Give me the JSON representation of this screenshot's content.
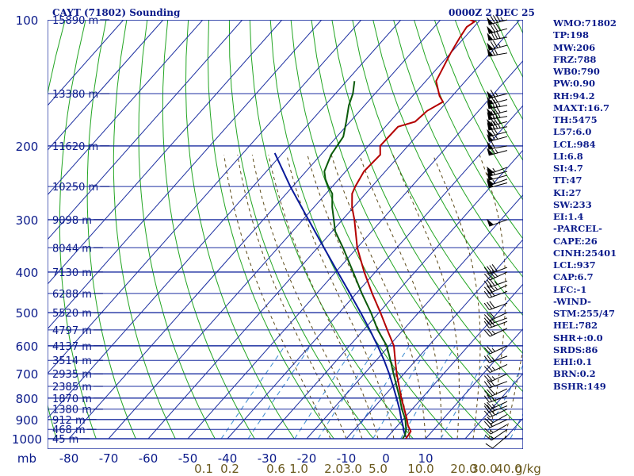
{
  "header": {
    "title": "CAYT (71802) Sounding",
    "valid_time": "0000Z  2 DEC 25"
  },
  "chart_data": {
    "type": "skew-t",
    "pressure_levels": [
      100,
      200,
      300,
      400,
      500,
      600,
      700,
      800,
      900,
      1000
    ],
    "pressure_label": "mb",
    "height_labels": [
      {
        "p": 100,
        "text": "15890 m"
      },
      {
        "p": 150,
        "text": "13380 m"
      },
      {
        "p": 200,
        "text": "11620 m"
      },
      {
        "p": 250,
        "text": "10250 m"
      },
      {
        "p": 300,
        "text": "9098 m"
      },
      {
        "p": 350,
        "text": "8044 m"
      },
      {
        "p": 400,
        "text": "7130 m"
      },
      {
        "p": 450,
        "text": "6288 m"
      },
      {
        "p": 500,
        "text": "5520 m"
      },
      {
        "p": 550,
        "text": "4797 m"
      },
      {
        "p": 600,
        "text": "4137 m"
      },
      {
        "p": 650,
        "text": "3514 m"
      },
      {
        "p": 700,
        "text": "2935 m"
      },
      {
        "p": 750,
        "text": "2385 m"
      },
      {
        "p": 800,
        "text": "1870 m"
      },
      {
        "p": 850,
        "text": "1380 m"
      },
      {
        "p": 900,
        "text": "912 m"
      },
      {
        "p": 950,
        "text": "468 m"
      },
      {
        "p": 1000,
        "text": "45 m"
      }
    ],
    "temperature_ticks": [
      -80,
      -70,
      -60,
      -50,
      -40,
      -30,
      -20,
      -10,
      0,
      10
    ],
    "mixing_ratio_ticks": [
      "0.1",
      "0.2",
      "0.6",
      "1.0",
      "2.0",
      "3.0",
      "5.0",
      "10.0",
      "20.0",
      "30.0",
      "40.0"
    ],
    "mixing_ratio_unit": "g/kg",
    "temperature_profile": [
      [
        1000,
        5.0
      ],
      [
        975,
        4.8
      ],
      [
        960,
        4.6
      ],
      [
        930,
        2.6
      ],
      [
        900,
        1.0
      ],
      [
        850,
        -2.0
      ],
      [
        800,
        -5.2
      ],
      [
        750,
        -8.4
      ],
      [
        700,
        -11.8
      ],
      [
        650,
        -15.2
      ],
      [
        600,
        -18.8
      ],
      [
        550,
        -24.0
      ],
      [
        500,
        -29.6
      ],
      [
        450,
        -36.0
      ],
      [
        400,
        -42.8
      ],
      [
        350,
        -50.0
      ],
      [
        300,
        -57.0
      ],
      [
        280,
        -60.4
      ],
      [
        260,
        -63.4
      ],
      [
        250,
        -64.2
      ],
      [
        230,
        -65.4
      ],
      [
        210,
        -65.0
      ],
      [
        200,
        -67.0
      ],
      [
        180,
        -66.8
      ],
      [
        175,
        -63.6
      ],
      [
        165,
        -63.0
      ],
      [
        157,
        -61.0
      ],
      [
        152,
        -63.2
      ],
      [
        140,
        -67.4
      ],
      [
        120,
        -70.0
      ],
      [
        110,
        -71.2
      ],
      [
        104,
        -71.8
      ],
      [
        101,
        -71.0
      ],
      [
        100,
        -72.6
      ]
    ],
    "dewpoint_profile": [
      [
        1000,
        4.2
      ],
      [
        980,
        4.0
      ],
      [
        950,
        3.0
      ],
      [
        900,
        0.6
      ],
      [
        850,
        -2.6
      ],
      [
        800,
        -5.6
      ],
      [
        750,
        -9.0
      ],
      [
        700,
        -12.6
      ],
      [
        650,
        -16.4
      ],
      [
        600,
        -20.6
      ],
      [
        550,
        -26.4
      ],
      [
        500,
        -32.0
      ],
      [
        450,
        -38.6
      ],
      [
        400,
        -45.6
      ],
      [
        350,
        -53.6
      ],
      [
        320,
        -59.2
      ],
      [
        300,
        -62.2
      ],
      [
        280,
        -65.4
      ],
      [
        260,
        -68.4
      ],
      [
        250,
        -71.0
      ],
      [
        240,
        -73.4
      ],
      [
        230,
        -75.4
      ],
      [
        210,
        -77.4
      ],
      [
        190,
        -78.4
      ],
      [
        175,
        -81.0
      ],
      [
        160,
        -84.0
      ],
      [
        150,
        -85.6
      ],
      [
        140,
        -88.0
      ]
    ],
    "parcel_profile": [
      [
        990,
        4.6
      ],
      [
        950,
        2.3
      ],
      [
        937,
        1.7
      ],
      [
        900,
        -0.4
      ],
      [
        850,
        -3.2
      ],
      [
        800,
        -6.4
      ],
      [
        750,
        -9.9
      ],
      [
        700,
        -13.7
      ],
      [
        650,
        -18.0
      ],
      [
        600,
        -22.9
      ],
      [
        550,
        -28.4
      ],
      [
        500,
        -34.6
      ],
      [
        450,
        -41.6
      ],
      [
        400,
        -49.5
      ],
      [
        350,
        -58.4
      ],
      [
        300,
        -68.6
      ],
      [
        250,
        -80.6
      ],
      [
        208,
        -92.0
      ]
    ],
    "wind_barbs": [
      {
        "p": 100,
        "dir": 255,
        "speed": 85
      },
      {
        "p": 105,
        "dir": 255,
        "speed": 80
      },
      {
        "p": 110,
        "dir": 260,
        "speed": 80
      },
      {
        "p": 115,
        "dir": 255,
        "speed": 75
      },
      {
        "p": 120,
        "dir": 260,
        "speed": 70
      },
      {
        "p": 150,
        "dir": 255,
        "speed": 65
      },
      {
        "p": 155,
        "dir": 255,
        "speed": 70
      },
      {
        "p": 160,
        "dir": 260,
        "speed": 75
      },
      {
        "p": 165,
        "dir": 255,
        "speed": 80
      },
      {
        "p": 170,
        "dir": 260,
        "speed": 75
      },
      {
        "p": 175,
        "dir": 255,
        "speed": 80
      },
      {
        "p": 180,
        "dir": 260,
        "speed": 75
      },
      {
        "p": 185,
        "dir": 255,
        "speed": 70
      },
      {
        "p": 190,
        "dir": 255,
        "speed": 65
      },
      {
        "p": 200,
        "dir": 260,
        "speed": 60
      },
      {
        "p": 205,
        "dir": 255,
        "speed": 65
      },
      {
        "p": 225,
        "dir": 250,
        "speed": 55
      },
      {
        "p": 230,
        "dir": 255,
        "speed": 55
      },
      {
        "p": 235,
        "dir": 255,
        "speed": 50
      },
      {
        "p": 240,
        "dir": 250,
        "speed": 55
      },
      {
        "p": 245,
        "dir": 255,
        "speed": 50
      },
      {
        "p": 300,
        "dir": 250,
        "speed": 50
      },
      {
        "p": 390,
        "dir": 250,
        "speed": 40
      },
      {
        "p": 400,
        "dir": 245,
        "speed": 40
      },
      {
        "p": 420,
        "dir": 250,
        "speed": 35
      },
      {
        "p": 430,
        "dir": 245,
        "speed": 35
      },
      {
        "p": 445,
        "dir": 250,
        "speed": 30
      },
      {
        "p": 475,
        "dir": 250,
        "speed": 30
      },
      {
        "p": 500,
        "dir": 245,
        "speed": 30
      },
      {
        "p": 515,
        "dir": 250,
        "speed": 25
      },
      {
        "p": 525,
        "dir": 250,
        "speed": 30
      },
      {
        "p": 545,
        "dir": 245,
        "speed": 25
      },
      {
        "p": 600,
        "dir": 245,
        "speed": 25
      },
      {
        "p": 635,
        "dir": 250,
        "speed": 25
      },
      {
        "p": 665,
        "dir": 245,
        "speed": 25
      },
      {
        "p": 700,
        "dir": 245,
        "speed": 25
      },
      {
        "p": 730,
        "dir": 250,
        "speed": 30
      },
      {
        "p": 760,
        "dir": 245,
        "speed": 30
      },
      {
        "p": 790,
        "dir": 250,
        "speed": 25
      },
      {
        "p": 815,
        "dir": 245,
        "speed": 25
      },
      {
        "p": 835,
        "dir": 250,
        "speed": 25
      },
      {
        "p": 850,
        "dir": 245,
        "speed": 25
      },
      {
        "p": 875,
        "dir": 240,
        "speed": 20
      },
      {
        "p": 900,
        "dir": 245,
        "speed": 20
      },
      {
        "p": 925,
        "dir": 240,
        "speed": 15
      },
      {
        "p": 950,
        "dir": 235,
        "speed": 15
      },
      {
        "p": 985,
        "dir": 230,
        "speed": 10
      }
    ],
    "colors": {
      "isobar": "#1c2fa0",
      "isotherm": "#1c2fa0",
      "dry_adiabat": "#22a522",
      "moist_adiabat": "#5c4a18",
      "mixing_ratio": "#3a8ad0",
      "temperature": "#b40000",
      "dewpoint": "#0a5a0a",
      "parcel": "#0a1a9a",
      "labels": "#0a1a8a",
      "mixing_ratio_labels": "#6b5a1e"
    }
  },
  "indices": [
    "WMO:71802",
    "TP:198",
    "MW:206",
    "FRZ:788",
    "WB0:790",
    "PW:0.90",
    "RH:94.2",
    "MAXT:16.7",
    "TH:5475",
    "L57:6.0",
    "LCL:984",
    "LI:6.8",
    "SI:4.7",
    "TT:47",
    "KI:27",
    "SW:233",
    "EI:1.4",
    "-PARCEL-",
    "CAPE:26",
    "CINH:25401",
    "LCL:937",
    "CAP:6.7",
    "LFC:-1",
    "-WIND-",
    "STM:255/47",
    "HEL:782",
    "SHR+:0.0",
    "SRDS:86",
    "EHI:0.1",
    "BRN:0.2",
    "BSHR:149"
  ]
}
